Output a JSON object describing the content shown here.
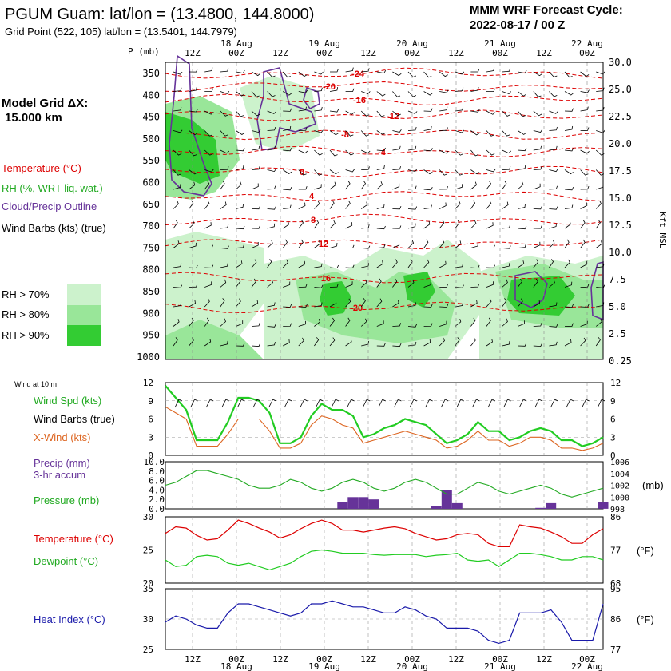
{
  "header": {
    "title": "PGUM Guam:  lat/lon = (13.4800, 144.8000)",
    "subtitle": "Grid Point (522, 105) lat/lon = (13.5401, 144.7979)",
    "cycle_line1": "MMM WRF Forecast Cycle:",
    "cycle_line2": "2022-08-17 / 00  Z",
    "model_grid_label": "Model Grid ΔX:",
    "model_grid_value": "15.000 km"
  },
  "time_axis": {
    "ticks": [
      "12Z",
      "00Z",
      "12Z",
      "00Z",
      "12Z",
      "00Z",
      "12Z",
      "00Z",
      "12Z",
      "00Z"
    ],
    "dates": [
      "18 Aug",
      "19 Aug",
      "20 Aug",
      "21 Aug",
      "22 Aug"
    ]
  },
  "chart_data": [
    {
      "type": "heatmap",
      "title": "",
      "ylabel": "P (mb)",
      "y2label": "Kft MSL",
      "pressure_ticks": [
        "350",
        "400",
        "450",
        "500",
        "550",
        "600",
        "650",
        "700",
        "750",
        "800",
        "850",
        "900",
        "950",
        "1000"
      ],
      "height_ticks": [
        "30.0",
        "25.0",
        "22.5",
        "20.0",
        "17.5",
        "15.0",
        "12.5",
        "10.0",
        "7.5",
        "5.0",
        "2.5",
        "0.25"
      ],
      "temperature_contours_c": [
        "-24",
        "-20",
        "-16",
        "-12",
        "-8",
        "-4",
        "0",
        "4",
        "8",
        "12",
        "16",
        "20"
      ],
      "legend": {
        "temperature": "Temperature (°C)",
        "rh": "RH (%, WRT liq. wat.)",
        "cloud": "Cloud/Precip Outline",
        "barbs": "Wind Barbs (kts) (true)",
        "rh70": "RH > 70%",
        "rh80": "RH > 80%",
        "rh90": "RH > 90%"
      },
      "colors": {
        "rh70": "#ccf2cc",
        "rh80": "#99e699",
        "rh90": "#33cc33",
        "temp": "#dd0000",
        "cloud": "#663399"
      }
    },
    {
      "type": "line",
      "caption": "Wind at 10 m",
      "ylim": [
        0,
        12
      ],
      "yticks": [
        "12",
        "9",
        "6",
        "3",
        "0"
      ],
      "series": [
        {
          "name": "Wind Spd (kts)",
          "color": "#22cc22",
          "values": [
            11.5,
            9.5,
            7.5,
            2.5,
            2.5,
            2.5,
            5.5,
            9.5,
            9.5,
            9,
            7,
            2,
            2,
            3,
            6.5,
            8.5,
            7.5,
            7.5,
            6.5,
            3,
            3.5,
            4.5,
            5,
            6,
            5.5,
            5,
            3.5,
            2,
            2.5,
            3.5,
            5.5,
            4,
            4,
            2.5,
            3,
            4,
            4.5,
            4,
            2.5,
            2.5,
            1.5,
            2,
            3
          ]
        },
        {
          "name": "X-Wind (kts)",
          "color": "#dd6622",
          "values": [
            8,
            7,
            6,
            1.5,
            1.5,
            1.5,
            3.5,
            6,
            6,
            6,
            4,
            1.2,
            1.2,
            2,
            5,
            6.5,
            6,
            5,
            4.5,
            2,
            2.5,
            3,
            3.5,
            4,
            3.5,
            3,
            2.5,
            1.2,
            1.5,
            2.5,
            4,
            2.5,
            2.5,
            1.5,
            2,
            3,
            3,
            2.5,
            1.2,
            1.2,
            0.8,
            1.2,
            2
          ]
        }
      ],
      "labels": {
        "barbs": "Wind Barbs (true)"
      }
    },
    {
      "type": "bar",
      "ylim": [
        0,
        10
      ],
      "yticks": [
        "10.0",
        "8.0",
        "6.0",
        "4.0",
        "2.0",
        "0.0"
      ],
      "y2ticks": [
        "1006",
        "1004",
        "1002",
        "1000",
        "998"
      ],
      "y2label": "(mb)",
      "series": [
        {
          "name": "Precip (mm)",
          "sublabel": "3-hr accum",
          "color": "#663399",
          "values": [
            0,
            0,
            0,
            0,
            0,
            0,
            0,
            0,
            0,
            0,
            0,
            0,
            0,
            0,
            0,
            0,
            0,
            1.5,
            2.5,
            2.5,
            2,
            0,
            0,
            0,
            0,
            0,
            0.6,
            4,
            1.2,
            0,
            0,
            0,
            0,
            0,
            0,
            0,
            0.2,
            1.2,
            0,
            0,
            0,
            0,
            1.5
          ]
        },
        {
          "name": "Pressure (mb)",
          "color": "#22aa22",
          "values": [
            1002,
            1002.5,
            1003.5,
            1004.5,
            1004.5,
            1004,
            1003.5,
            1003,
            1002,
            1001.5,
            1001.5,
            1002,
            1003,
            1002.5,
            1001.5,
            1001,
            1001.5,
            1002.5,
            1003,
            1002.5,
            1001.5,
            1001,
            1001.5,
            1002.5,
            1003,
            1002.5,
            1001.5,
            1000.5,
            1000.5,
            1001.5,
            1002.5,
            1002,
            1001,
            1000.5,
            1001,
            1001.5,
            1002,
            1001.5,
            1000.5,
            1000,
            1000.5,
            1001,
            1001.5
          ]
        }
      ]
    },
    {
      "type": "line",
      "ylim": [
        20,
        30
      ],
      "yticks": [
        "30",
        "25",
        "20"
      ],
      "y2ticks": [
        "86",
        "77",
        "68"
      ],
      "y2label": "(°F)",
      "series": [
        {
          "name": "Temperature (°C)",
          "color": "#dd0000",
          "values": [
            27.5,
            28.5,
            28.3,
            27.2,
            26.5,
            26.7,
            28,
            29.5,
            29,
            28.3,
            27.7,
            26.8,
            27.3,
            28.2,
            29,
            29.5,
            29,
            28,
            28,
            27.7,
            28,
            28.3,
            28.5,
            28.2,
            27.5,
            27,
            26.5,
            26.7,
            27.3,
            27.5,
            27.3,
            26,
            25.5,
            25.5,
            28.8,
            28.5,
            28.3,
            27.7,
            27,
            26,
            26,
            27.3,
            28.2
          ]
        },
        {
          "name": "Dewpoint (°C)",
          "color": "#22cc22",
          "values": [
            23.5,
            22.5,
            22.7,
            24,
            24.2,
            24,
            23,
            22.7,
            23,
            22.5,
            22,
            22.5,
            23,
            24,
            24.8,
            25,
            24.8,
            24.5,
            24.5,
            24.5,
            24.3,
            24.2,
            24.3,
            24.3,
            24.3,
            24,
            24.2,
            24.3,
            24.5,
            23.5,
            23.3,
            23.5,
            22.5,
            23.5,
            24.5,
            24.5,
            24.3,
            24,
            23.5,
            23.5,
            24,
            24,
            23.5
          ]
        }
      ]
    },
    {
      "type": "line",
      "ylim": [
        25,
        35
      ],
      "yticks": [
        "35",
        "30",
        "25"
      ],
      "y2ticks": [
        "95",
        "86",
        "77"
      ],
      "y2label": "(°F)",
      "series": [
        {
          "name": "Heat Index (°C)",
          "color": "#1a1aaa",
          "values": [
            29.5,
            30.5,
            30,
            29,
            28.5,
            28.5,
            31,
            32.5,
            32.5,
            32,
            31.5,
            31,
            30.5,
            31,
            32.5,
            32.5,
            33,
            32.5,
            32,
            32,
            31.5,
            31,
            31,
            32,
            31.5,
            30.5,
            30,
            28.5,
            28.5,
            28.5,
            28,
            26.5,
            26,
            26.5,
            31,
            31,
            31,
            31.5,
            29.5,
            26.5,
            26.5,
            26.5,
            32.5
          ]
        }
      ]
    }
  ]
}
